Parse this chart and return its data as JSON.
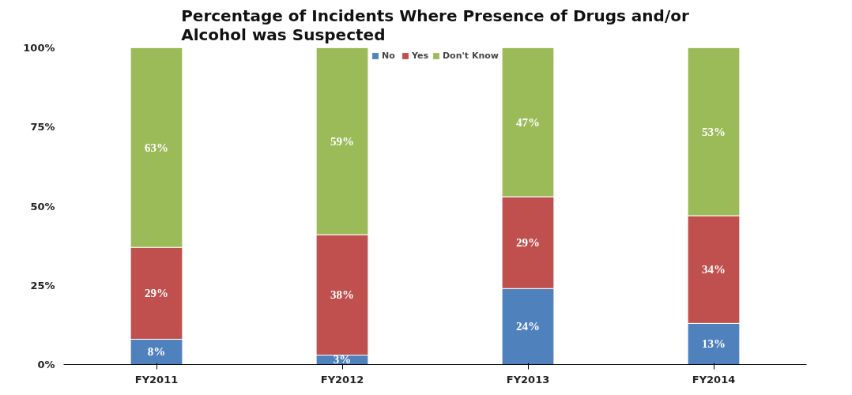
{
  "chart_data": {
    "type": "bar",
    "stacked": true,
    "title": "Percentage of Incidents Where Presence of Drugs and/or Alcohol was Suspected",
    "categories": [
      "FY2011",
      "FY2012",
      "FY2013",
      "FY2014"
    ],
    "series": [
      {
        "name": "No",
        "color": "#4f81bd",
        "values": [
          8,
          3,
          24,
          13
        ],
        "value_labels": [
          "8%",
          "3%",
          "24%",
          "13%"
        ]
      },
      {
        "name": "Yes",
        "color": "#c0504d",
        "values": [
          29,
          38,
          29,
          34
        ],
        "value_labels": [
          "29%",
          "38%",
          "29%",
          "34%"
        ]
      },
      {
        "name": "Don't Know",
        "color": "#9bbb59",
        "values": [
          63,
          59,
          47,
          53
        ],
        "value_labels": [
          "63%",
          "59%",
          "47%",
          "53%"
        ]
      }
    ],
    "ylim": [
      0,
      100
    ],
    "yticks": [
      {
        "value": 0,
        "label": "0%"
      },
      {
        "value": 25,
        "label": "25%"
      },
      {
        "value": 50,
        "label": "50%"
      },
      {
        "value": 75,
        "label": "75%"
      },
      {
        "value": 100,
        "label": "100%"
      }
    ],
    "legend": "top",
    "grid": false
  }
}
